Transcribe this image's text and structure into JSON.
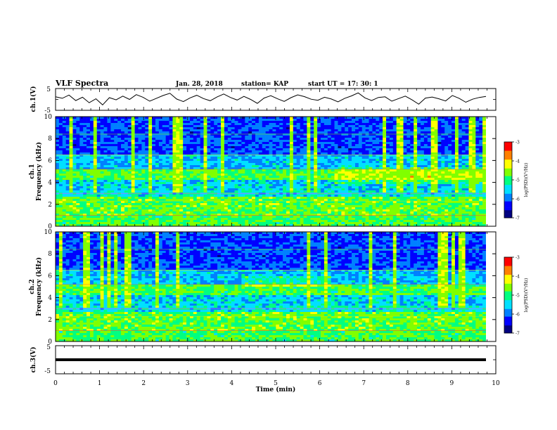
{
  "header": {
    "title": "VLF Spectra",
    "date": "Jan. 28, 2018",
    "station": "station= KAP",
    "start_time": "start UT =  17: 30: 1"
  },
  "colors": {
    "waveform": "#000000",
    "ch3_line": "#000000",
    "colormap": [
      "#000000",
      "#000080",
      "#0000ff",
      "#0080ff",
      "#00e0ff",
      "#00ff80",
      "#80ff00",
      "#ffff00",
      "#ff8000",
      "#ff0000",
      "#ffffff"
    ]
  },
  "chart_data": [
    {
      "type": "line",
      "name": "ch1-waveform",
      "ylabel": "ch.1(V)",
      "ylim": [
        -5,
        5
      ],
      "yticks": [
        "5",
        "-5"
      ],
      "xlim": [
        0,
        10
      ],
      "series": [
        {
          "values": [
            1.2,
            0.5,
            2.0,
            -0.5,
            1.0,
            -1.5,
            0.3,
            -2.5,
            0.8,
            -0.2,
            1.5,
            0.0,
            2.2,
            1.0,
            -0.8,
            0.5,
            1.8,
            2.8,
            0.2,
            -1.0,
            0.7,
            1.9,
            0.4,
            -0.6,
            1.1,
            2.5,
            0.9,
            -0.3,
            1.4,
            0.0,
            -1.8,
            0.6,
            1.7,
            0.3,
            -0.9,
            0.8,
            2.1,
            1.3,
            0.1,
            -0.4,
            1.0,
            0.2,
            -1.1,
            0.5,
            1.6,
            3.0,
            0.7,
            -0.5,
            0.9,
            1.2,
            -0.8,
            0.4,
            1.5,
            -0.2,
            -2.2,
            0.6,
            1.1,
            0.3,
            -0.7,
            1.8,
            0.5,
            -1.3,
            0.1,
            0.9,
            1.4
          ]
        }
      ]
    },
    {
      "type": "heatmap",
      "name": "ch1-spectrogram",
      "ylabel": "Frequency (kHz)",
      "channel_label": "ch.1",
      "ylim": [
        0,
        10
      ],
      "yticks": [
        "0",
        "2",
        "4",
        "6",
        "8",
        "10"
      ],
      "colorbar": {
        "label": "log(PSD)(V²/Hz)",
        "ticks": [
          "-3",
          "-4",
          "-5",
          "-6",
          "-7"
        ]
      }
    },
    {
      "type": "heatmap",
      "name": "ch2-spectrogram",
      "ylabel": "Frequency (kHz)",
      "channel_label": "ch.2",
      "ylim": [
        0,
        10
      ],
      "yticks": [
        "0",
        "2",
        "4",
        "6",
        "8",
        "10"
      ],
      "colorbar": {
        "label": "log(PSD)(V²/Hz)",
        "ticks": [
          "-3",
          "-4",
          "-5",
          "-6",
          "-7"
        ]
      }
    },
    {
      "type": "line",
      "name": "ch3-waveform",
      "ylabel": "ch.3(V)",
      "ylim": [
        -5,
        5
      ],
      "yticks": [
        "5",
        "-5"
      ],
      "xlim": [
        0,
        10
      ],
      "xlabel": "Time  (min)",
      "xticks": [
        "0",
        "1",
        "2",
        "3",
        "4",
        "5",
        "6",
        "7",
        "8",
        "9",
        "10"
      ],
      "series": [
        {
          "values": [
            0,
            0
          ]
        }
      ]
    }
  ]
}
